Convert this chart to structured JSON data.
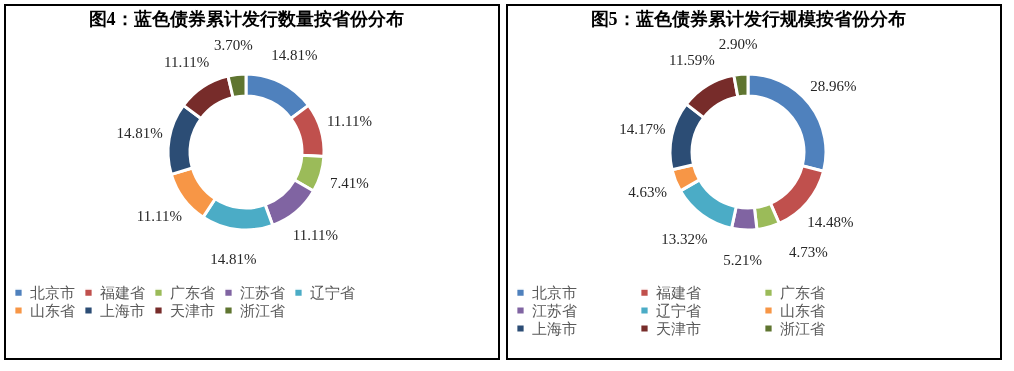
{
  "chart_data": [
    {
      "type": "donut",
      "title": "图4：蓝色债券累计发行数量按省份分布",
      "categories": [
        "北京市",
        "福建省",
        "广东省",
        "江苏省",
        "辽宁省",
        "山东省",
        "上海市",
        "天津市",
        "浙江省"
      ],
      "values": [
        14.81,
        11.11,
        7.41,
        11.11,
        14.81,
        11.11,
        14.81,
        11.11,
        3.7
      ],
      "value_labels": [
        "14.81%",
        "11.11%",
        "7.41%",
        "11.11%",
        "14.81%",
        "11.11%",
        "14.81%",
        "11.11%",
        "3.70%"
      ],
      "colors": [
        "#4f81bd",
        "#c0504d",
        "#9bbb59",
        "#8064a2",
        "#4bacc6",
        "#f79646",
        "#2c4d75",
        "#772c2a",
        "#5f7530"
      ],
      "legend": "bottom"
    },
    {
      "type": "donut",
      "title": "图5：蓝色债券累计发行规模按省份分布",
      "categories": [
        "北京市",
        "福建省",
        "广东省",
        "江苏省",
        "辽宁省",
        "山东省",
        "上海市",
        "天津市",
        "浙江省"
      ],
      "values": [
        28.96,
        14.48,
        4.73,
        5.21,
        13.32,
        4.63,
        14.17,
        11.59,
        2.9
      ],
      "value_labels": [
        "28.96%",
        "14.48%",
        "4.73%",
        "5.21%",
        "13.32%",
        "4.63%",
        "14.17%",
        "11.59%",
        "2.90%"
      ],
      "colors": [
        "#4f81bd",
        "#c0504d",
        "#9bbb59",
        "#8064a2",
        "#4bacc6",
        "#f79646",
        "#2c4d75",
        "#772c2a",
        "#5f7530"
      ],
      "legend": "bottom"
    }
  ]
}
